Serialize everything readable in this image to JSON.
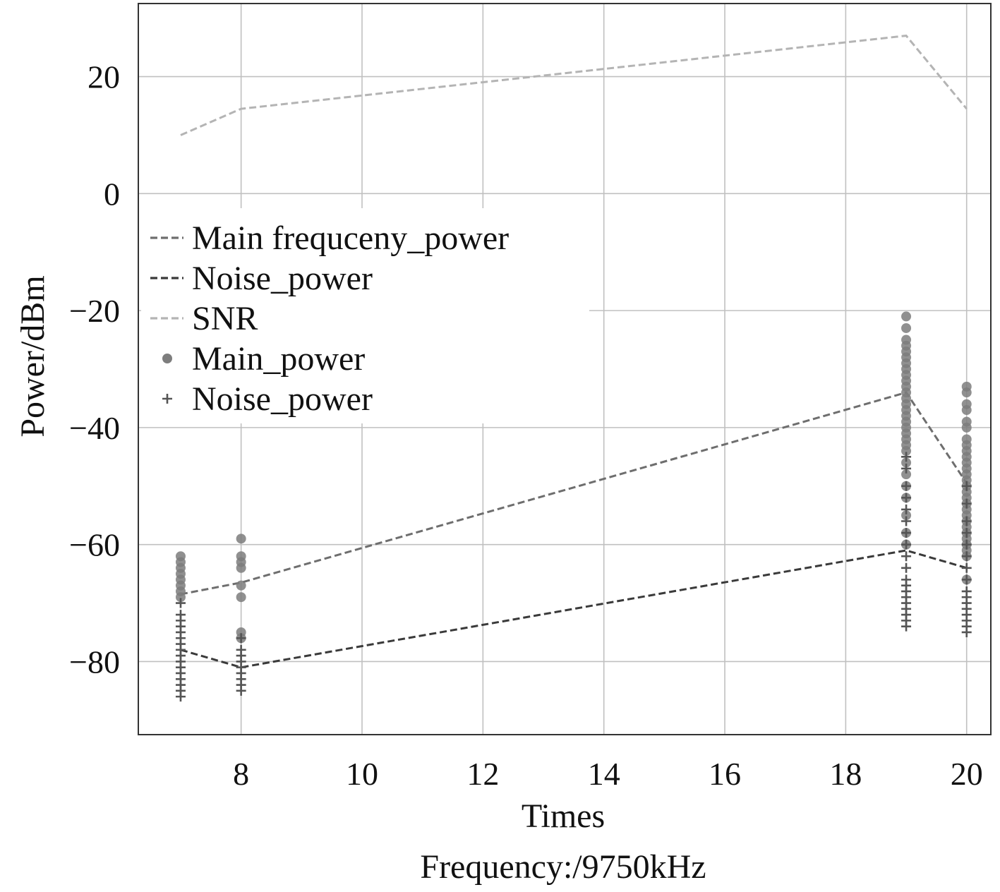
{
  "chart_data": {
    "type": "line",
    "title": "",
    "xlabel": "Times",
    "xlabel2": "Frequency:/9750kHz",
    "ylabel": "Power/dBm",
    "xlim": [
      6.3,
      20.4
    ],
    "ylim": [
      -92.5,
      32.5
    ],
    "xticks": [
      8,
      10,
      12,
      14,
      16,
      18,
      20
    ],
    "yticks": [
      20,
      0,
      -20,
      -40,
      -60,
      -80
    ],
    "grid": true,
    "legend_position": "upper-left",
    "colors": {
      "main_line": "#6e6e6e",
      "noise_line": "#3a3a3a",
      "snr_line": "#b4b4b4",
      "main_marker": "#7d7d7d",
      "noise_marker": "#555555",
      "grid": "#c0c0c0",
      "axis": "#333333"
    },
    "series": [
      {
        "name": "Main frequceny_power",
        "kind": "line",
        "style": "dashed",
        "x": [
          7,
          8,
          19,
          20
        ],
        "values": [
          -68.5,
          -66.5,
          -34,
          -49.5
        ]
      },
      {
        "name": "Noise_power",
        "kind": "line",
        "style": "dashed",
        "x": [
          7,
          8,
          19,
          20
        ],
        "values": [
          -78,
          -81,
          -61,
          -64
        ]
      },
      {
        "name": "SNR",
        "kind": "line",
        "style": "dashed",
        "x": [
          7,
          8,
          19,
          20
        ],
        "values": [
          10,
          14.5,
          27,
          14.5
        ]
      },
      {
        "name": "Main_power",
        "kind": "scatter",
        "marker": "circle",
        "points": [
          [
            7,
            -62
          ],
          [
            7,
            -63
          ],
          [
            7,
            -64
          ],
          [
            7,
            -65
          ],
          [
            7,
            -66
          ],
          [
            7,
            -67
          ],
          [
            7,
            -68
          ],
          [
            7,
            -69
          ],
          [
            8,
            -59
          ],
          [
            8,
            -62
          ],
          [
            8,
            -63
          ],
          [
            8,
            -64
          ],
          [
            8,
            -67
          ],
          [
            8,
            -69
          ],
          [
            8,
            -75
          ],
          [
            8,
            -76
          ],
          [
            19,
            -21
          ],
          [
            19,
            -23
          ],
          [
            19,
            -25
          ],
          [
            19,
            -26
          ],
          [
            19,
            -27
          ],
          [
            19,
            -28
          ],
          [
            19,
            -29
          ],
          [
            19,
            -30
          ],
          [
            19,
            -31
          ],
          [
            19,
            -32
          ],
          [
            19,
            -33
          ],
          [
            19,
            -34
          ],
          [
            19,
            -35
          ],
          [
            19,
            -36
          ],
          [
            19,
            -37
          ],
          [
            19,
            -38
          ],
          [
            19,
            -39
          ],
          [
            19,
            -40
          ],
          [
            19,
            -41
          ],
          [
            19,
            -42
          ],
          [
            19,
            -43
          ],
          [
            19,
            -44
          ],
          [
            19,
            -46
          ],
          [
            19,
            -48
          ],
          [
            19,
            -50
          ],
          [
            19,
            -52
          ],
          [
            19,
            -55
          ],
          [
            19,
            -58
          ],
          [
            19,
            -60
          ],
          [
            20,
            -33
          ],
          [
            20,
            -34
          ],
          [
            20,
            -36
          ],
          [
            20,
            -37
          ],
          [
            20,
            -39
          ],
          [
            20,
            -40
          ],
          [
            20,
            -42
          ],
          [
            20,
            -43
          ],
          [
            20,
            -44
          ],
          [
            20,
            -45
          ],
          [
            20,
            -46
          ],
          [
            20,
            -47
          ],
          [
            20,
            -48
          ],
          [
            20,
            -49
          ],
          [
            20,
            -50
          ],
          [
            20,
            -51
          ],
          [
            20,
            -52
          ],
          [
            20,
            -53
          ],
          [
            20,
            -54
          ],
          [
            20,
            -55
          ],
          [
            20,
            -56
          ],
          [
            20,
            -57
          ],
          [
            20,
            -58
          ],
          [
            20,
            -59
          ],
          [
            20,
            -60
          ],
          [
            20,
            -61
          ],
          [
            20,
            -62
          ],
          [
            20,
            -66
          ]
        ]
      },
      {
        "name": "Noise_power",
        "kind": "scatter",
        "marker": "plus",
        "points": [
          [
            7,
            -70
          ],
          [
            7,
            -72
          ],
          [
            7,
            -73
          ],
          [
            7,
            -74
          ],
          [
            7,
            -75
          ],
          [
            7,
            -76
          ],
          [
            7,
            -77
          ],
          [
            7,
            -78
          ],
          [
            7,
            -79
          ],
          [
            7,
            -80
          ],
          [
            7,
            -81
          ],
          [
            7,
            -82
          ],
          [
            7,
            -83
          ],
          [
            7,
            -84
          ],
          [
            7,
            -85
          ],
          [
            7,
            -86
          ],
          [
            8,
            -76
          ],
          [
            8,
            -78
          ],
          [
            8,
            -79
          ],
          [
            8,
            -80
          ],
          [
            8,
            -81
          ],
          [
            8,
            -82
          ],
          [
            8,
            -83
          ],
          [
            8,
            -84
          ],
          [
            8,
            -85
          ],
          [
            19,
            -45
          ],
          [
            19,
            -47
          ],
          [
            19,
            -50
          ],
          [
            19,
            -52
          ],
          [
            19,
            -54
          ],
          [
            19,
            -56
          ],
          [
            19,
            -58
          ],
          [
            19,
            -60
          ],
          [
            19,
            -62
          ],
          [
            19,
            -64
          ],
          [
            19,
            -66
          ],
          [
            19,
            -67
          ],
          [
            19,
            -68
          ],
          [
            19,
            -69
          ],
          [
            19,
            -70
          ],
          [
            19,
            -71
          ],
          [
            19,
            -72
          ],
          [
            19,
            -73
          ],
          [
            19,
            -74
          ],
          [
            20,
            -50
          ],
          [
            20,
            -53
          ],
          [
            20,
            -56
          ],
          [
            20,
            -58
          ],
          [
            20,
            -60
          ],
          [
            20,
            -62
          ],
          [
            20,
            -64
          ],
          [
            20,
            -66
          ],
          [
            20,
            -68
          ],
          [
            20,
            -69
          ],
          [
            20,
            -70
          ],
          [
            20,
            -71
          ],
          [
            20,
            -72
          ],
          [
            20,
            -73
          ],
          [
            20,
            -74
          ],
          [
            20,
            -75
          ]
        ]
      }
    ]
  }
}
